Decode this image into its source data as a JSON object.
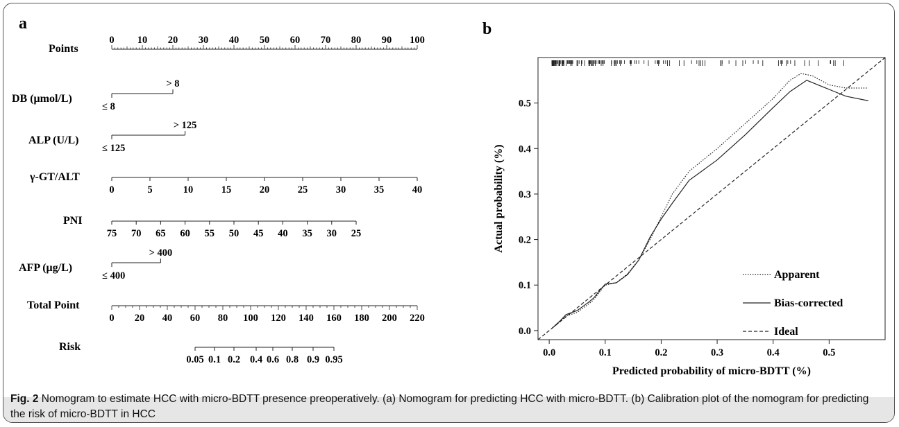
{
  "figure": {
    "caption_label": "Fig. 2",
    "caption_text": "Nomogram to estimate HCC with micro-BDTT presence preoperatively. (a) Nomogram for predicting HCC with micro-BDTT. (b) Calibration plot of the nomogram for predicting the risk of micro-BDTT in HCC"
  },
  "panel_a": {
    "letter": "a",
    "rows": [
      {
        "label": "Points",
        "ticks": [
          "0",
          "10",
          "20",
          "30",
          "40",
          "50",
          "60",
          "70",
          "80",
          "90",
          "100"
        ]
      },
      {
        "label": "DB (μmol/L)",
        "low": "≤ 8",
        "high": "> 8"
      },
      {
        "label": "ALP (U/L)",
        "low": "≤ 125",
        "high": "> 125"
      },
      {
        "label": "γ-GT/ALT",
        "ticks": [
          "0",
          "5",
          "10",
          "15",
          "20",
          "25",
          "30",
          "35",
          "40"
        ]
      },
      {
        "label": "PNI",
        "ticks": [
          "75",
          "70",
          "65",
          "60",
          "55",
          "50",
          "45",
          "40",
          "35",
          "30",
          "25"
        ]
      },
      {
        "label": "AFP (μg/L)",
        "low": "≤ 400",
        "high": "> 400"
      },
      {
        "label": "Total Point",
        "ticks": [
          "0",
          "20",
          "40",
          "60",
          "80",
          "100",
          "120",
          "140",
          "160",
          "180",
          "200",
          "220"
        ]
      },
      {
        "label": "Risk",
        "ticks": [
          "0.05",
          "0.1",
          "0.2",
          "0.4",
          "0.6",
          "0.8",
          "0.9",
          "0.95"
        ]
      }
    ]
  },
  "chart_data": [
    {
      "type": "nomogram",
      "title": "",
      "scales": [
        {
          "name": "Points",
          "range": [
            0,
            100
          ]
        },
        {
          "name": "DB (μmol/L)",
          "categories": [
            "≤ 8",
            "> 8"
          ],
          "points": [
            0,
            20
          ]
        },
        {
          "name": "ALP (U/L)",
          "categories": [
            "≤ 125",
            "> 125"
          ],
          "points": [
            0,
            24
          ]
        },
        {
          "name": "γ-GT/ALT",
          "range": [
            0,
            40
          ],
          "points": [
            0,
            100
          ]
        },
        {
          "name": "PNI",
          "range": [
            75,
            25
          ],
          "points": [
            0,
            80
          ]
        },
        {
          "name": "AFP (μg/L)",
          "categories": [
            "≤ 400",
            "> 400"
          ],
          "points": [
            0,
            16
          ]
        },
        {
          "name": "Total Point",
          "range": [
            0,
            220
          ]
        },
        {
          "name": "Risk",
          "values": [
            0.05,
            0.1,
            0.2,
            0.4,
            0.6,
            0.8,
            0.9,
            0.95
          ],
          "total_points": [
            60,
            74,
            88,
            104,
            116,
            130,
            145,
            160
          ]
        }
      ]
    },
    {
      "type": "line",
      "letter": "b",
      "xlabel": "Predicted probability of micro-BDTT (%)",
      "ylabel": "Actual probability (%)",
      "xlim": [
        -0.02,
        0.6
      ],
      "ylim": [
        -0.02,
        0.6
      ],
      "xticks": [
        "0.0",
        "0.1",
        "0.2",
        "0.3",
        "0.4",
        "0.5"
      ],
      "yticks": [
        "0.0",
        "0.1",
        "0.2",
        "0.3",
        "0.4",
        "0.5"
      ],
      "legend_position": "bottom-right",
      "series": [
        {
          "name": "Apparent",
          "style": "dotted",
          "x": [
            0.005,
            0.02,
            0.03,
            0.05,
            0.07,
            0.08,
            0.09,
            0.1,
            0.12,
            0.14,
            0.16,
            0.18,
            0.2,
            0.22,
            0.25,
            0.3,
            0.35,
            0.4,
            0.43,
            0.45,
            0.47,
            0.5,
            0.53,
            0.57
          ],
          "y": [
            0.005,
            0.02,
            0.032,
            0.04,
            0.058,
            0.068,
            0.085,
            0.1,
            0.105,
            0.125,
            0.155,
            0.2,
            0.25,
            0.3,
            0.35,
            0.4,
            0.455,
            0.51,
            0.55,
            0.565,
            0.56,
            0.54,
            0.533,
            0.533
          ]
        },
        {
          "name": "Bias-corrected",
          "style": "solid",
          "x": [
            0.005,
            0.02,
            0.03,
            0.05,
            0.07,
            0.08,
            0.09,
            0.1,
            0.12,
            0.14,
            0.16,
            0.18,
            0.2,
            0.22,
            0.25,
            0.3,
            0.35,
            0.4,
            0.43,
            0.46,
            0.48,
            0.5,
            0.53,
            0.57
          ],
          "y": [
            0.005,
            0.022,
            0.035,
            0.044,
            0.062,
            0.072,
            0.088,
            0.102,
            0.105,
            0.123,
            0.155,
            0.205,
            0.245,
            0.28,
            0.33,
            0.375,
            0.43,
            0.49,
            0.525,
            0.55,
            0.54,
            0.53,
            0.515,
            0.505
          ]
        },
        {
          "name": "Ideal",
          "style": "dashed",
          "x": [
            -0.02,
            0.6
          ],
          "y": [
            -0.02,
            0.6
          ]
        }
      ],
      "rug": "distribution of predicted probabilities, densest between 0.0 and 0.1"
    }
  ]
}
